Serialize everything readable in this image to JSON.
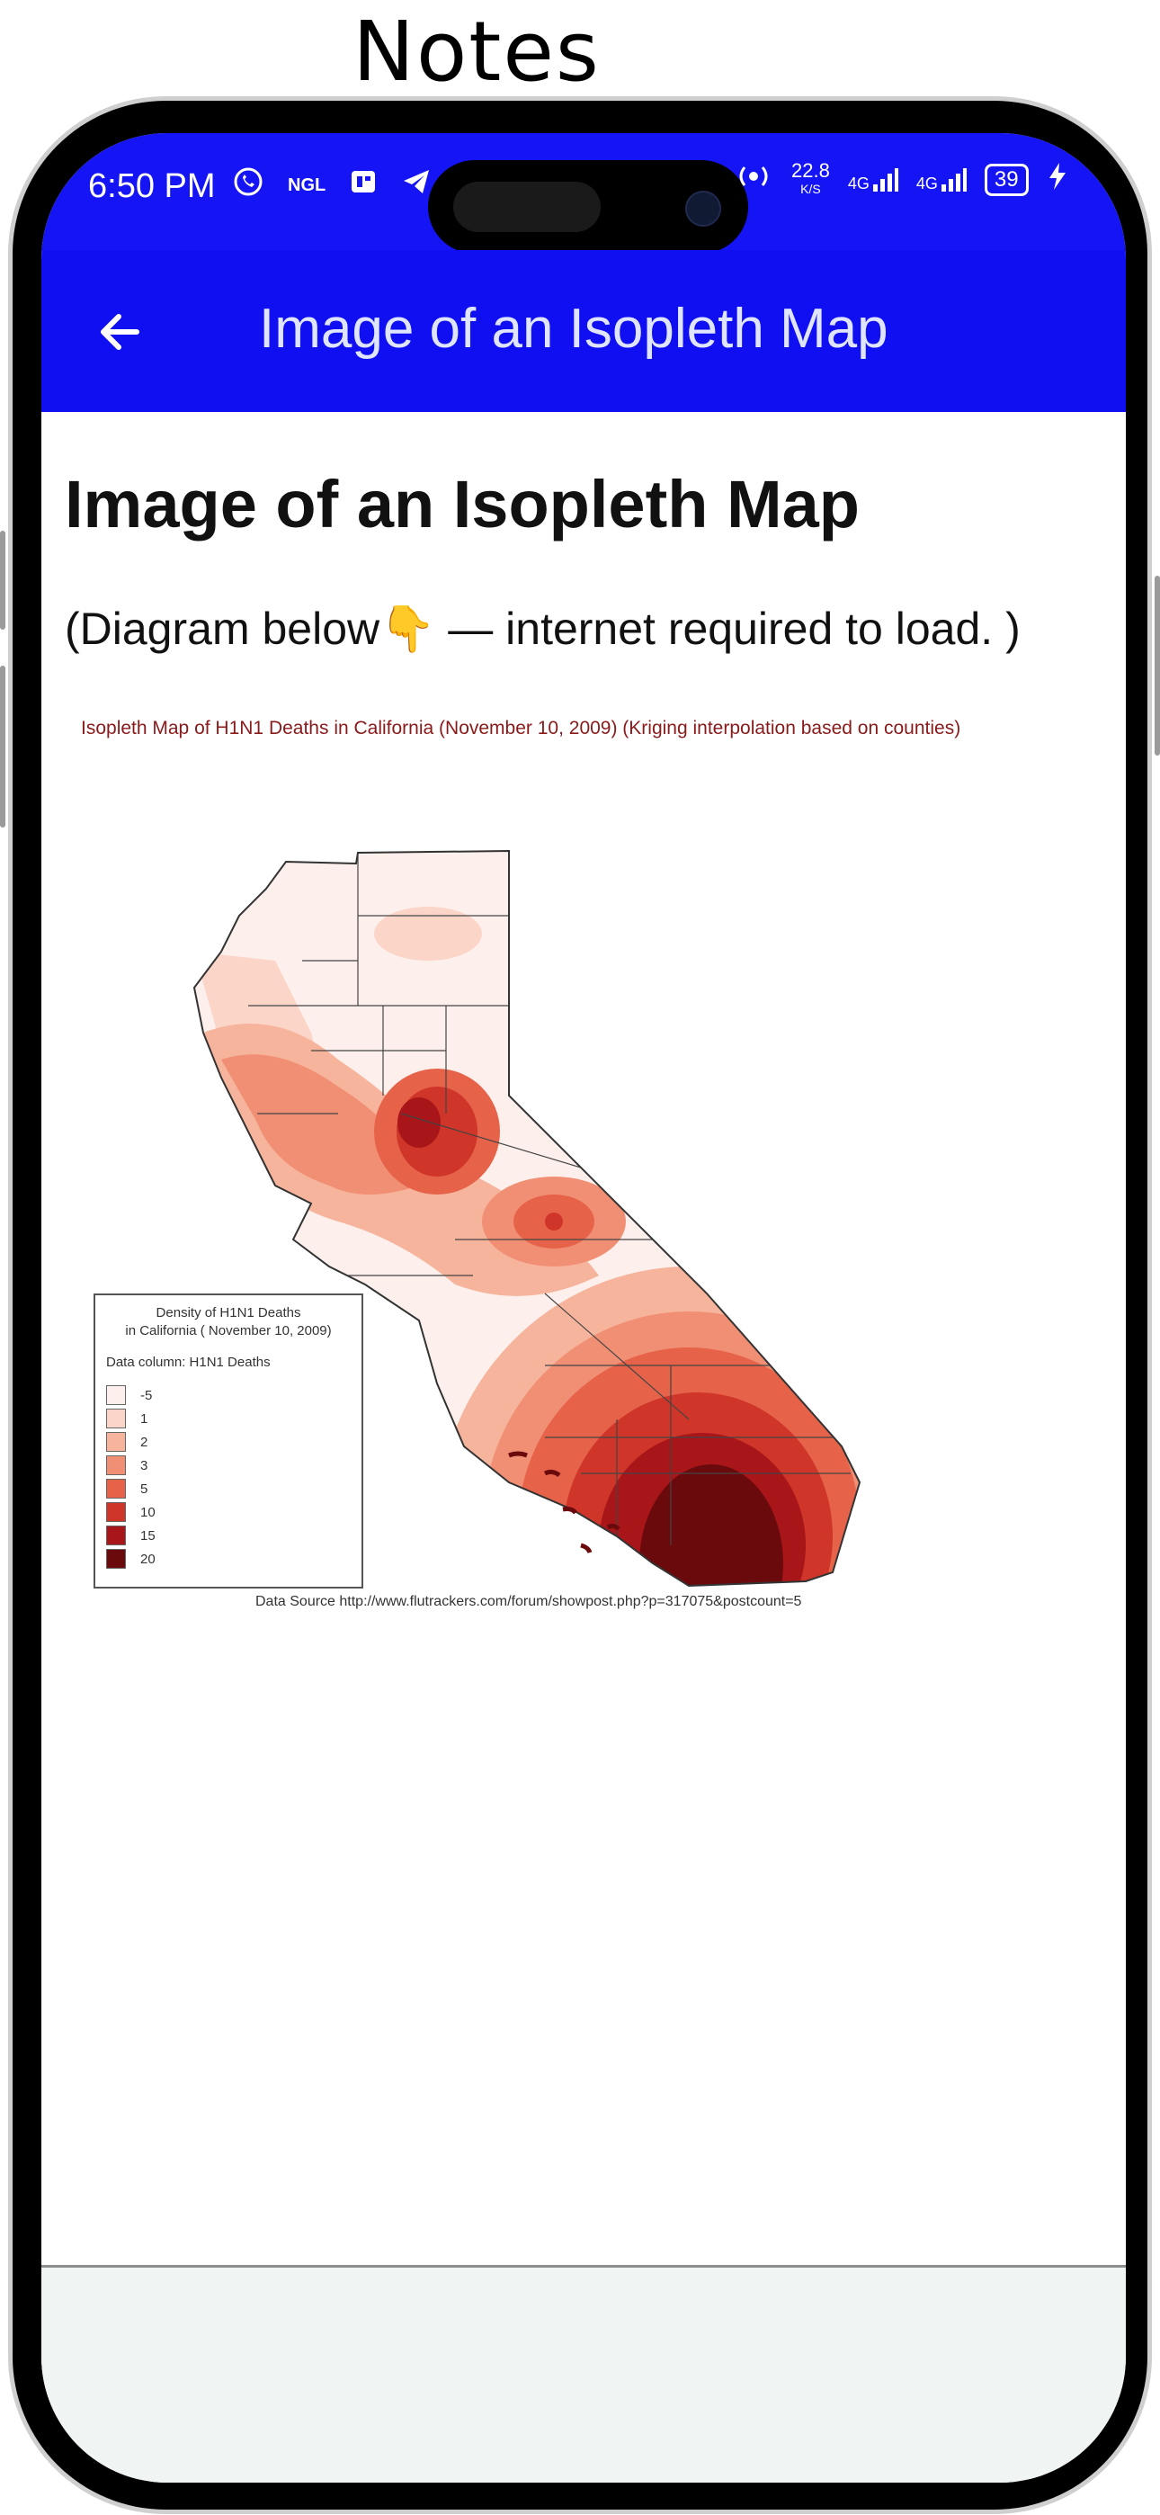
{
  "caption": "Notes",
  "status": {
    "time": "6:50 PM",
    "left_icons": [
      "whatsapp-icon",
      "ngl-icon",
      "news-icon",
      "telegram-icon"
    ],
    "speed_value": "22.8",
    "speed_unit": "K/S",
    "net1": "4G",
    "net2": "4G",
    "battery": "39"
  },
  "app_bar": {
    "title": "Image of an Isopleth Map",
    "background": "#0f0ff2"
  },
  "content": {
    "heading": "Image of an Isopleth Map",
    "subtext": "(Diagram below👇 — internet required to load. )"
  },
  "map": {
    "caption": "Isopleth Map of H1N1 Deaths in California (November 10, 2009) (Kriging interpolation based on counties)",
    "legend_title_1": "Density of H1N1 Deaths",
    "legend_title_2": "in California ( November 10, 2009)",
    "legend_column": "Data column: H1N1 Deaths",
    "legend_items": [
      {
        "label": "-5",
        "color": "#fdf0ec"
      },
      {
        "label": "1",
        "color": "#fbd5c8"
      },
      {
        "label": "2",
        "color": "#f7b49c"
      },
      {
        "label": "3",
        "color": "#f18f74"
      },
      {
        "label": "5",
        "color": "#e6634a"
      },
      {
        "label": "10",
        "color": "#cf3528"
      },
      {
        "label": "15",
        "color": "#a8161a"
      },
      {
        "label": "20",
        "color": "#6b0a0c"
      }
    ],
    "source": "Data Source http://www.flutrackers.com/forum/showpost.php?p=317075&postcount=5"
  }
}
